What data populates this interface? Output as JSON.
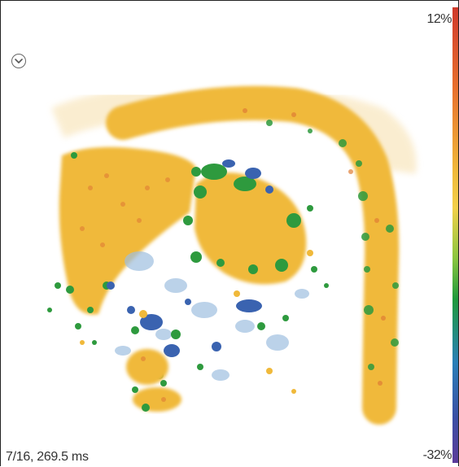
{
  "colorbar": {
    "max_label": "12%",
    "min_label": "-32%"
  },
  "frame_info": "7/16, 269.5 ms",
  "icons": {
    "expand": "chevron-down-icon"
  },
  "palette": {
    "yellow": "#f0b93a",
    "orange": "#e07d35",
    "green": "#2e9a3e",
    "blue": "#3a63b0",
    "light_blue": "#9fbfe0"
  }
}
